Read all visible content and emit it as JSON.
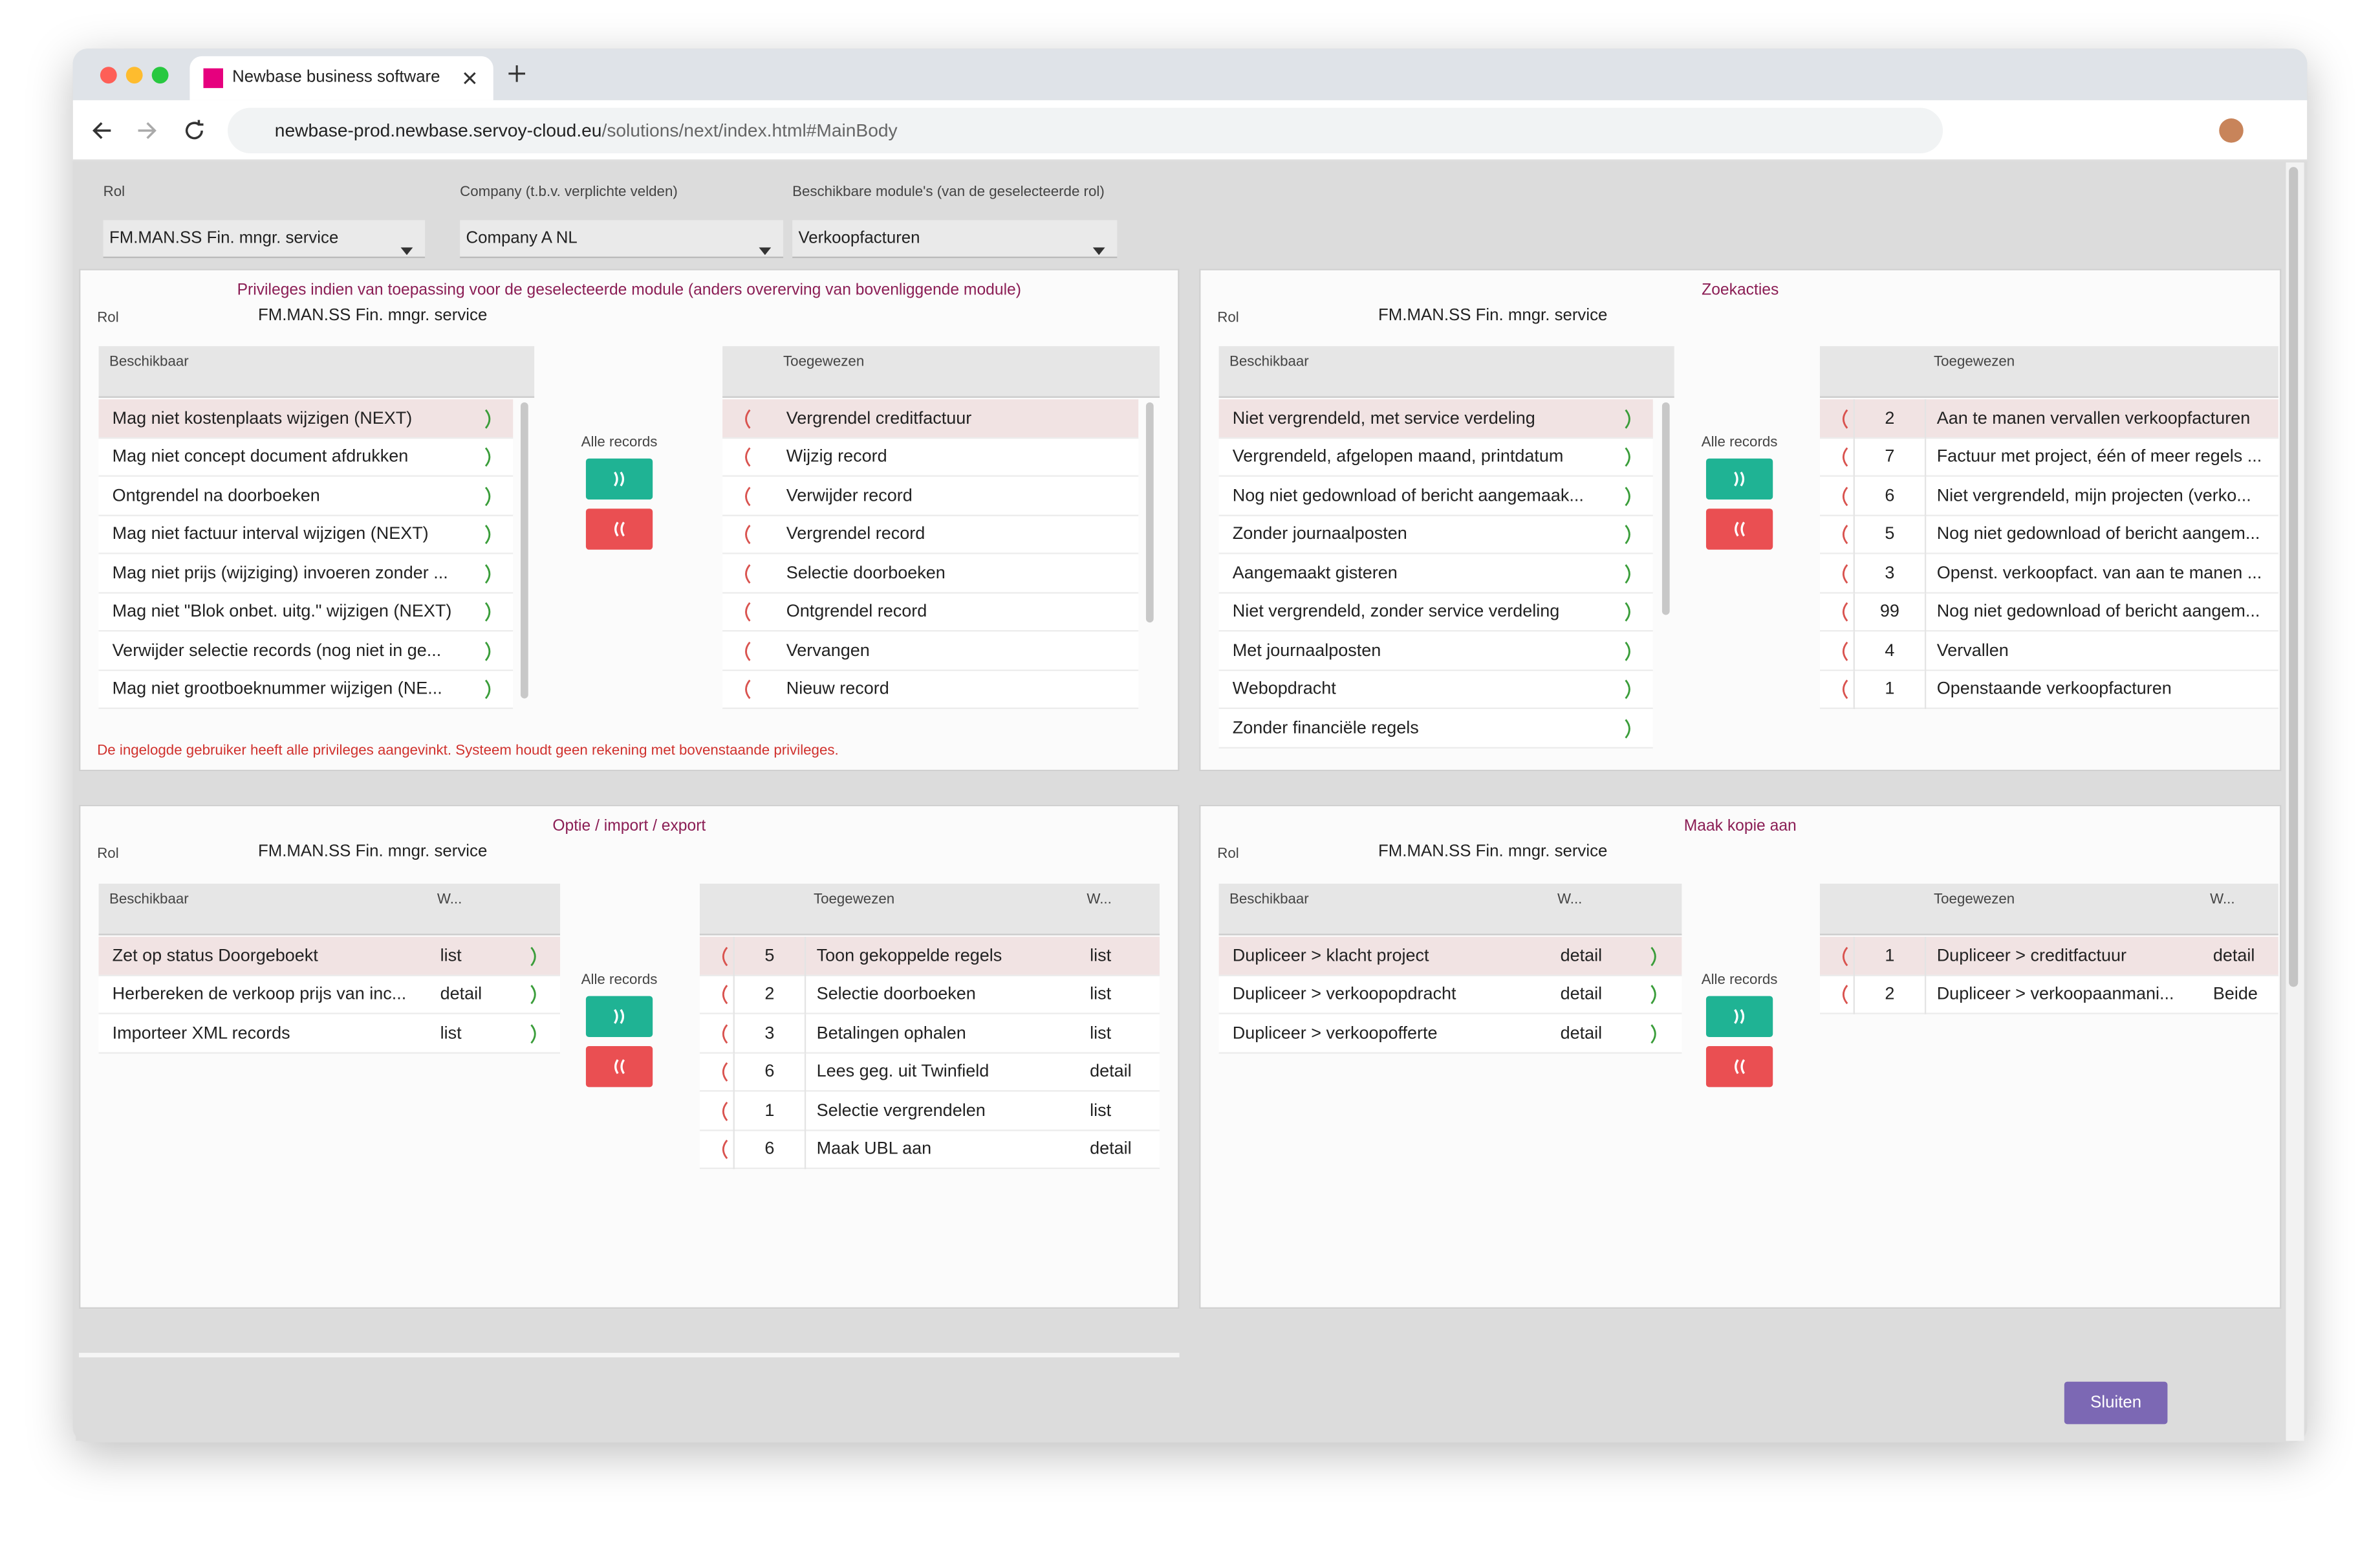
{
  "browser": {
    "tab_title": "Newbase business software",
    "url_host": "newbase-prod.newbase.servoy-cloud.eu",
    "url_path": "/solutions/next/index.html#MainBody"
  },
  "filters": [
    {
      "label": "Rol",
      "value": "FM.MAN.SS Fin. mngr. service"
    },
    {
      "label": "Company (t.b.v. verplichte velden)",
      "value": "Company A NL"
    },
    {
      "label": "Beschikbare module's (van de geselecteerde rol)",
      "value": "Verkoopfacturen"
    }
  ],
  "panels": [
    {
      "title": "Privileges indien van toepassing voor de geselecteerde module (anders overerving van bovenliggende module)",
      "rol_label": "Rol",
      "rol_value": "FM.MAN.SS Fin. mngr. service",
      "available": {
        "header": "Beschikbaar",
        "rows": [
          "Mag niet kostenplaats wijzigen (NEXT)",
          "Mag niet concept document afdrukken",
          "Ontgrendel na doorboeken",
          "Mag niet factuur interval wijzigen (NEXT)",
          "Mag niet prijs (wijziging) invoeren zonder ...",
          "Mag niet \"Blok onbet. uitg.\" wijzigen (NEXT)",
          "Verwijder selectie records (nog niet in ge...",
          "Mag niet grootboeknummer wijzigen (NE..."
        ]
      },
      "all_records": "Alle records",
      "assigned": {
        "header": "Toegewezen",
        "rows": [
          "Vergrendel creditfactuur",
          "Wijzig record",
          "Verwijder record",
          "Vergrendel record",
          "Selectie doorboeken",
          "Ontgrendel record",
          "Vervangen",
          "Nieuw record"
        ]
      },
      "warning": "De ingelogde gebruiker heeft alle privileges aangevinkt. Systeem houdt geen rekening met bovenstaande privileges."
    },
    {
      "title": "Zoekacties",
      "rol_label": "Rol",
      "rol_value": "FM.MAN.SS Fin. mngr. service",
      "available": {
        "header": "Beschikbaar",
        "rows": [
          "Niet vergrendeld, met service verdeling",
          "Vergrendeld, afgelopen maand, printdatum",
          "Nog niet gedownload of bericht aangemaak...",
          "Zonder journaalposten",
          "Aangemaakt gisteren",
          "Niet vergrendeld, zonder service verdeling",
          "Met journaalposten",
          "Webopdracht",
          "Zonder financiële regels"
        ]
      },
      "all_records": "Alle records",
      "assigned": {
        "header": "Toegewezen",
        "rows": [
          {
            "num": 2,
            "label": "Aan te manen vervallen verkoopfacturen"
          },
          {
            "num": 7,
            "label": "Factuur met project, één of meer regels ..."
          },
          {
            "num": 6,
            "label": "Niet vergrendeld, mijn projecten (verko..."
          },
          {
            "num": 5,
            "label": "Nog niet gedownload of bericht aangem..."
          },
          {
            "num": 3,
            "label": "Openst. verkoopfact. van aan te manen ..."
          },
          {
            "num": 99,
            "label": "Nog niet gedownload of bericht aangem..."
          },
          {
            "num": 4,
            "label": "Vervallen"
          },
          {
            "num": 1,
            "label": "Openstaande verkoopfacturen"
          }
        ]
      }
    },
    {
      "title": "Optie / import / export",
      "rol_label": "Rol",
      "rol_value": "FM.MAN.SS Fin. mngr. service",
      "available": {
        "header": "Beschikbaar",
        "w_header": "W...",
        "rows": [
          {
            "label": "Zet op status Doorgeboekt",
            "w": "list"
          },
          {
            "label": "Herbereken de verkoop prijs van inc...",
            "w": "detail"
          },
          {
            "label": "Importeer XML records",
            "w": "list"
          }
        ]
      },
      "all_records": "Alle records",
      "assigned": {
        "header": "Toegewezen",
        "w_header": "W...",
        "rows": [
          {
            "num": 5,
            "label": "Toon gekoppelde regels",
            "w": "list"
          },
          {
            "num": 2,
            "label": "Selectie doorboeken",
            "w": "list"
          },
          {
            "num": 3,
            "label": "Betalingen ophalen",
            "w": "list"
          },
          {
            "num": 6,
            "label": "Lees geg. uit Twinfield",
            "w": "detail"
          },
          {
            "num": 1,
            "label": "Selectie vergrendelen",
            "w": "list"
          },
          {
            "num": 6,
            "label": "Maak UBL aan",
            "w": "detail"
          }
        ]
      }
    },
    {
      "title": "Maak kopie aan",
      "rol_label": "Rol",
      "rol_value": "FM.MAN.SS Fin. mngr. service",
      "available": {
        "header": "Beschikbaar",
        "w_header": "W...",
        "rows": [
          {
            "label": "Dupliceer > klacht project",
            "w": "detail"
          },
          {
            "label": "Dupliceer > verkoopopdracht",
            "w": "detail"
          },
          {
            "label": "Dupliceer > verkoopofferte",
            "w": "detail"
          }
        ]
      },
      "all_records": "Alle records",
      "assigned": {
        "header": "Toegewezen",
        "w_header": "W...",
        "rows": [
          {
            "num": 1,
            "label": "Dupliceer > creditfactuur",
            "w": "detail"
          },
          {
            "num": 2,
            "label": "Dupliceer > verkoopaanmani...",
            "w": "Beide"
          }
        ]
      }
    }
  ],
  "close_button": "Sluiten"
}
